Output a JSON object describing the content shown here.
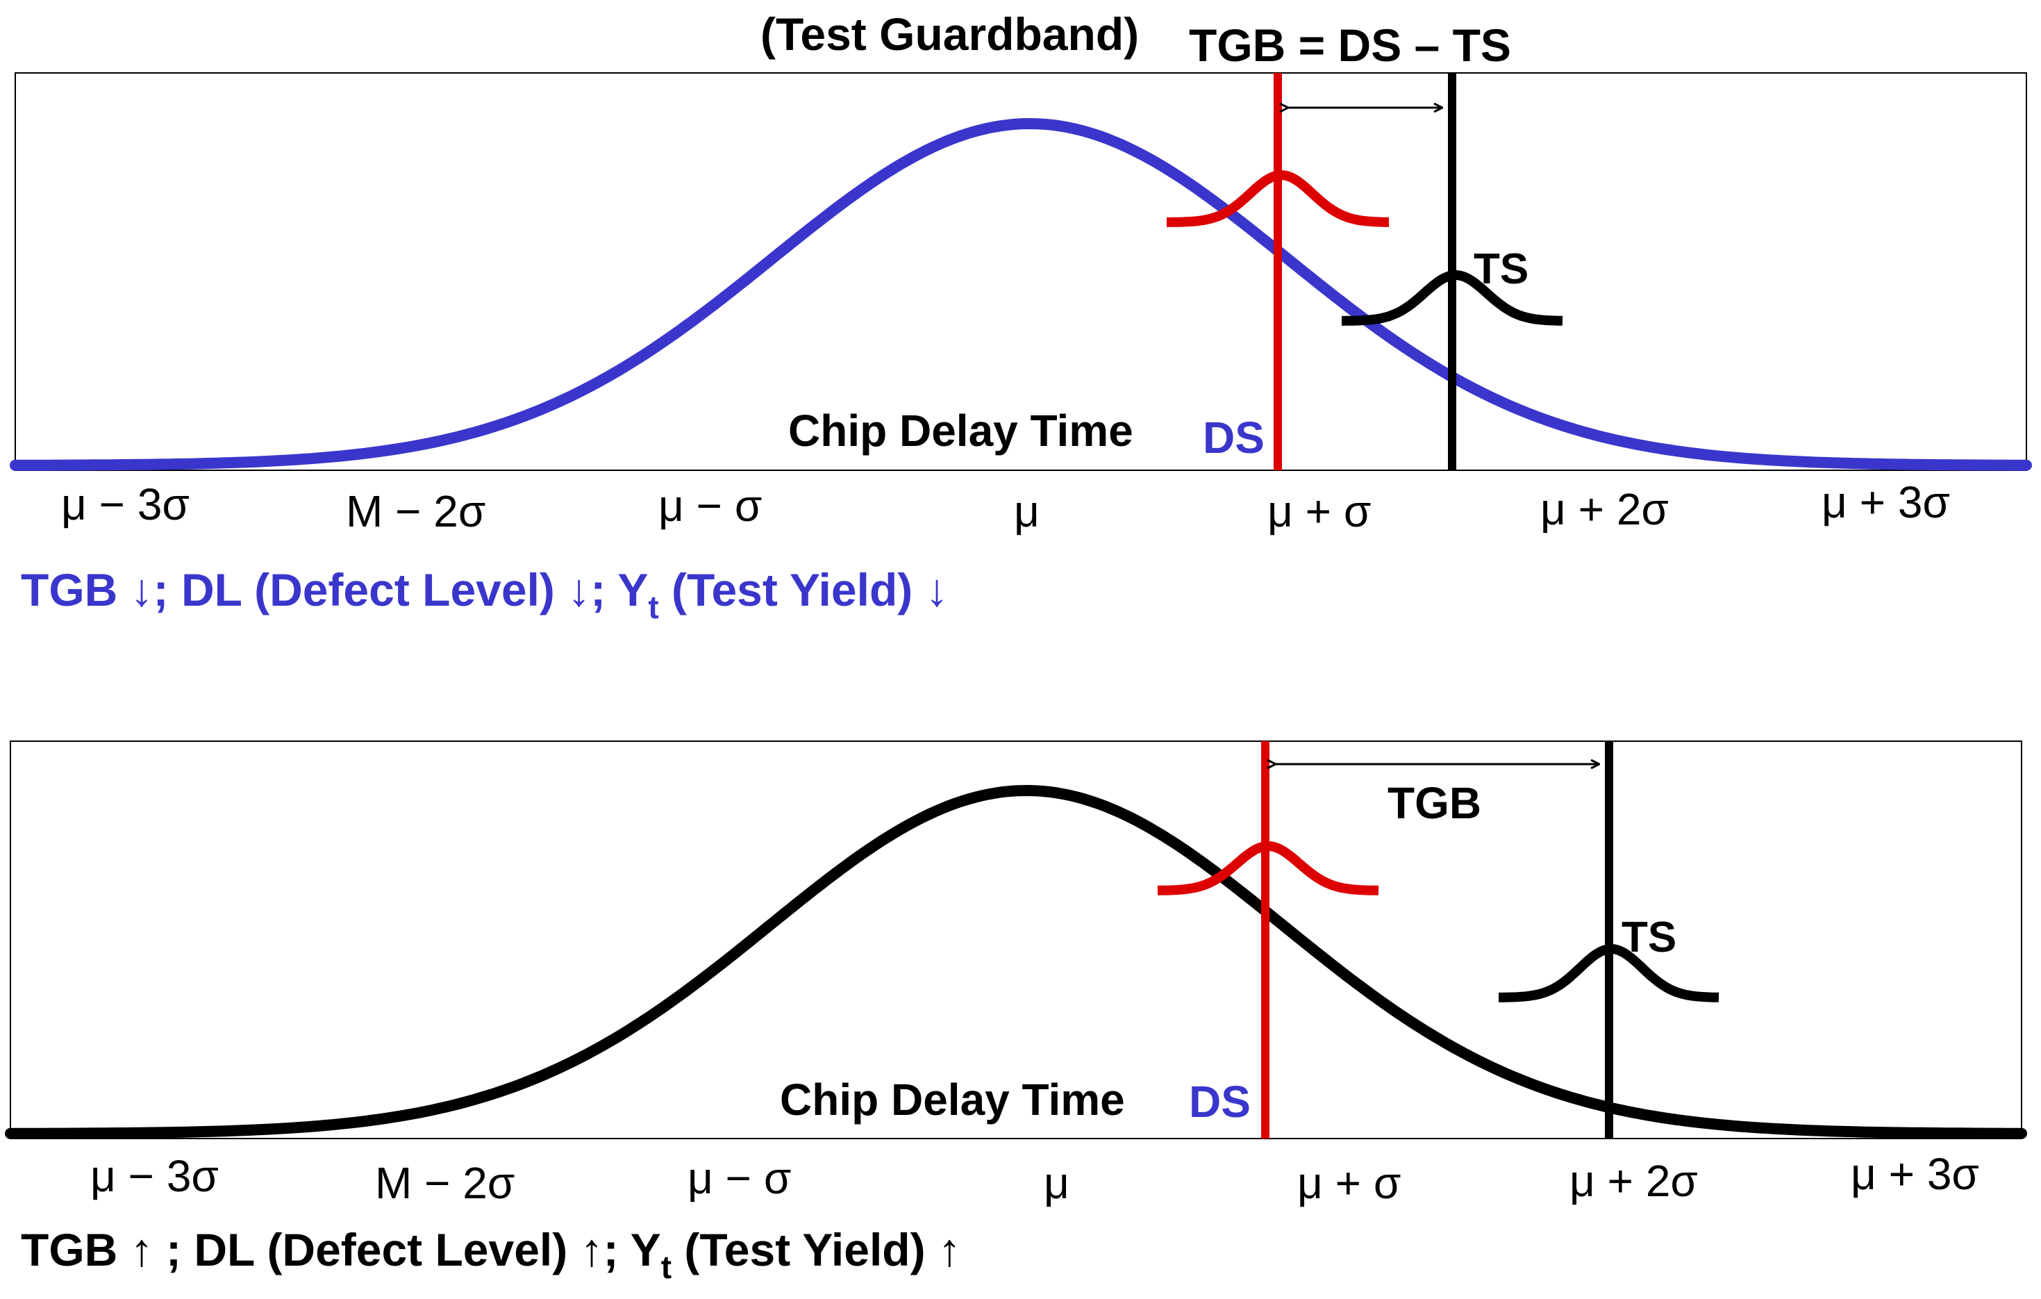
{
  "colors": {
    "blue_curve": "#3a36cc",
    "red": "#dd0000",
    "black": "#000000",
    "blue_text": "#3a36cc"
  },
  "header": {
    "guardband_label": "(Test Guardband)",
    "equation": "TGB = DS – TS"
  },
  "panels": [
    {
      "curve_label": "Chip Delay Time",
      "ds_label": "DS",
      "ts_label": "TS",
      "tgb_label": "",
      "ticks": [
        "μ − 3σ",
        "M − 2σ",
        "μ − σ",
        "μ",
        "μ + σ",
        "μ + 2σ",
        "μ + 3σ"
      ],
      "summary": {
        "tgb": "TGB ↓",
        "dl": "; DL (Defect Level) ↓",
        "yt": "; Y",
        "yt_sub": "t",
        "yt_rest": " (Test Yield) ↓"
      }
    },
    {
      "curve_label": "Chip Delay Time",
      "ds_label": "DS",
      "ts_label": "TS",
      "tgb_label": "TGB",
      "ticks": [
        "μ − 3σ",
        "M − 2σ",
        "μ − σ",
        "μ",
        "μ + σ",
        "μ + 2σ",
        "μ + 3σ"
      ],
      "summary": {
        "tgb": "TGB ↑ ",
        "dl": "; DL (Defect Level) ↑",
        "yt": "; Y",
        "yt_sub": "t",
        "yt_rest": " (Test Yield) ↑"
      }
    }
  ]
}
